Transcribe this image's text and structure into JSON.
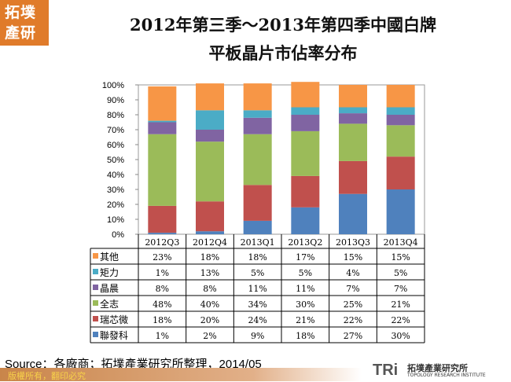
{
  "logo": "拓墣產研",
  "title_line1": "2012年第三季～2013年第四季中國白牌",
  "title_line2": "平板晶片市佔率分布",
  "source": "Source：各廠商；拓墣產業研究所整理，2014/05",
  "copyright": "版權所有，翻印必究",
  "brand": {
    "mark": "TRi",
    "name_cn": "拓墣產業研究所",
    "name_en": "TOPOLOGY RESEARCH INSTITUTE"
  },
  "chart_data": {
    "type": "bar",
    "stacked": true,
    "percent": true,
    "categories": [
      "2012Q3",
      "2012Q4",
      "2013Q1",
      "2013Q2",
      "2013Q3",
      "2013Q4"
    ],
    "ylim": [
      0,
      100
    ],
    "yticks": [
      "0%",
      "10%",
      "20%",
      "30%",
      "40%",
      "50%",
      "60%",
      "70%",
      "80%",
      "90%",
      "100%"
    ],
    "series": [
      {
        "name": "聯發科",
        "color": "#4f81bd",
        "values": [
          1,
          2,
          9,
          18,
          27,
          30
        ],
        "labels": [
          "1%",
          "2%",
          "9%",
          "18%",
          "27%",
          "30%"
        ]
      },
      {
        "name": "瑞芯微",
        "color": "#c0504d",
        "values": [
          18,
          20,
          24,
          21,
          22,
          22
        ],
        "labels": [
          "18%",
          "20%",
          "24%",
          "21%",
          "22%",
          "22%"
        ]
      },
      {
        "name": "全志",
        "color": "#9bbb59",
        "values": [
          48,
          40,
          34,
          30,
          25,
          21
        ],
        "labels": [
          "48%",
          "40%",
          "34%",
          "30%",
          "25%",
          "21%"
        ]
      },
      {
        "name": "晶晨",
        "color": "#8064a2",
        "values": [
          8,
          8,
          11,
          11,
          7,
          7
        ],
        "labels": [
          "8%",
          "8%",
          "11%",
          "11%",
          "7%",
          "7%"
        ]
      },
      {
        "name": "矩力",
        "color": "#4bacc6",
        "values": [
          1,
          13,
          5,
          5,
          4,
          5
        ],
        "labels": [
          "1%",
          "13%",
          "5%",
          "5%",
          "4%",
          "5%"
        ]
      },
      {
        "name": "其他",
        "color": "#f79646",
        "values": [
          23,
          18,
          18,
          17,
          15,
          15
        ],
        "labels": [
          "23%",
          "18%",
          "18%",
          "17%",
          "15%",
          "15%"
        ]
      }
    ],
    "legend": "data-table"
  }
}
